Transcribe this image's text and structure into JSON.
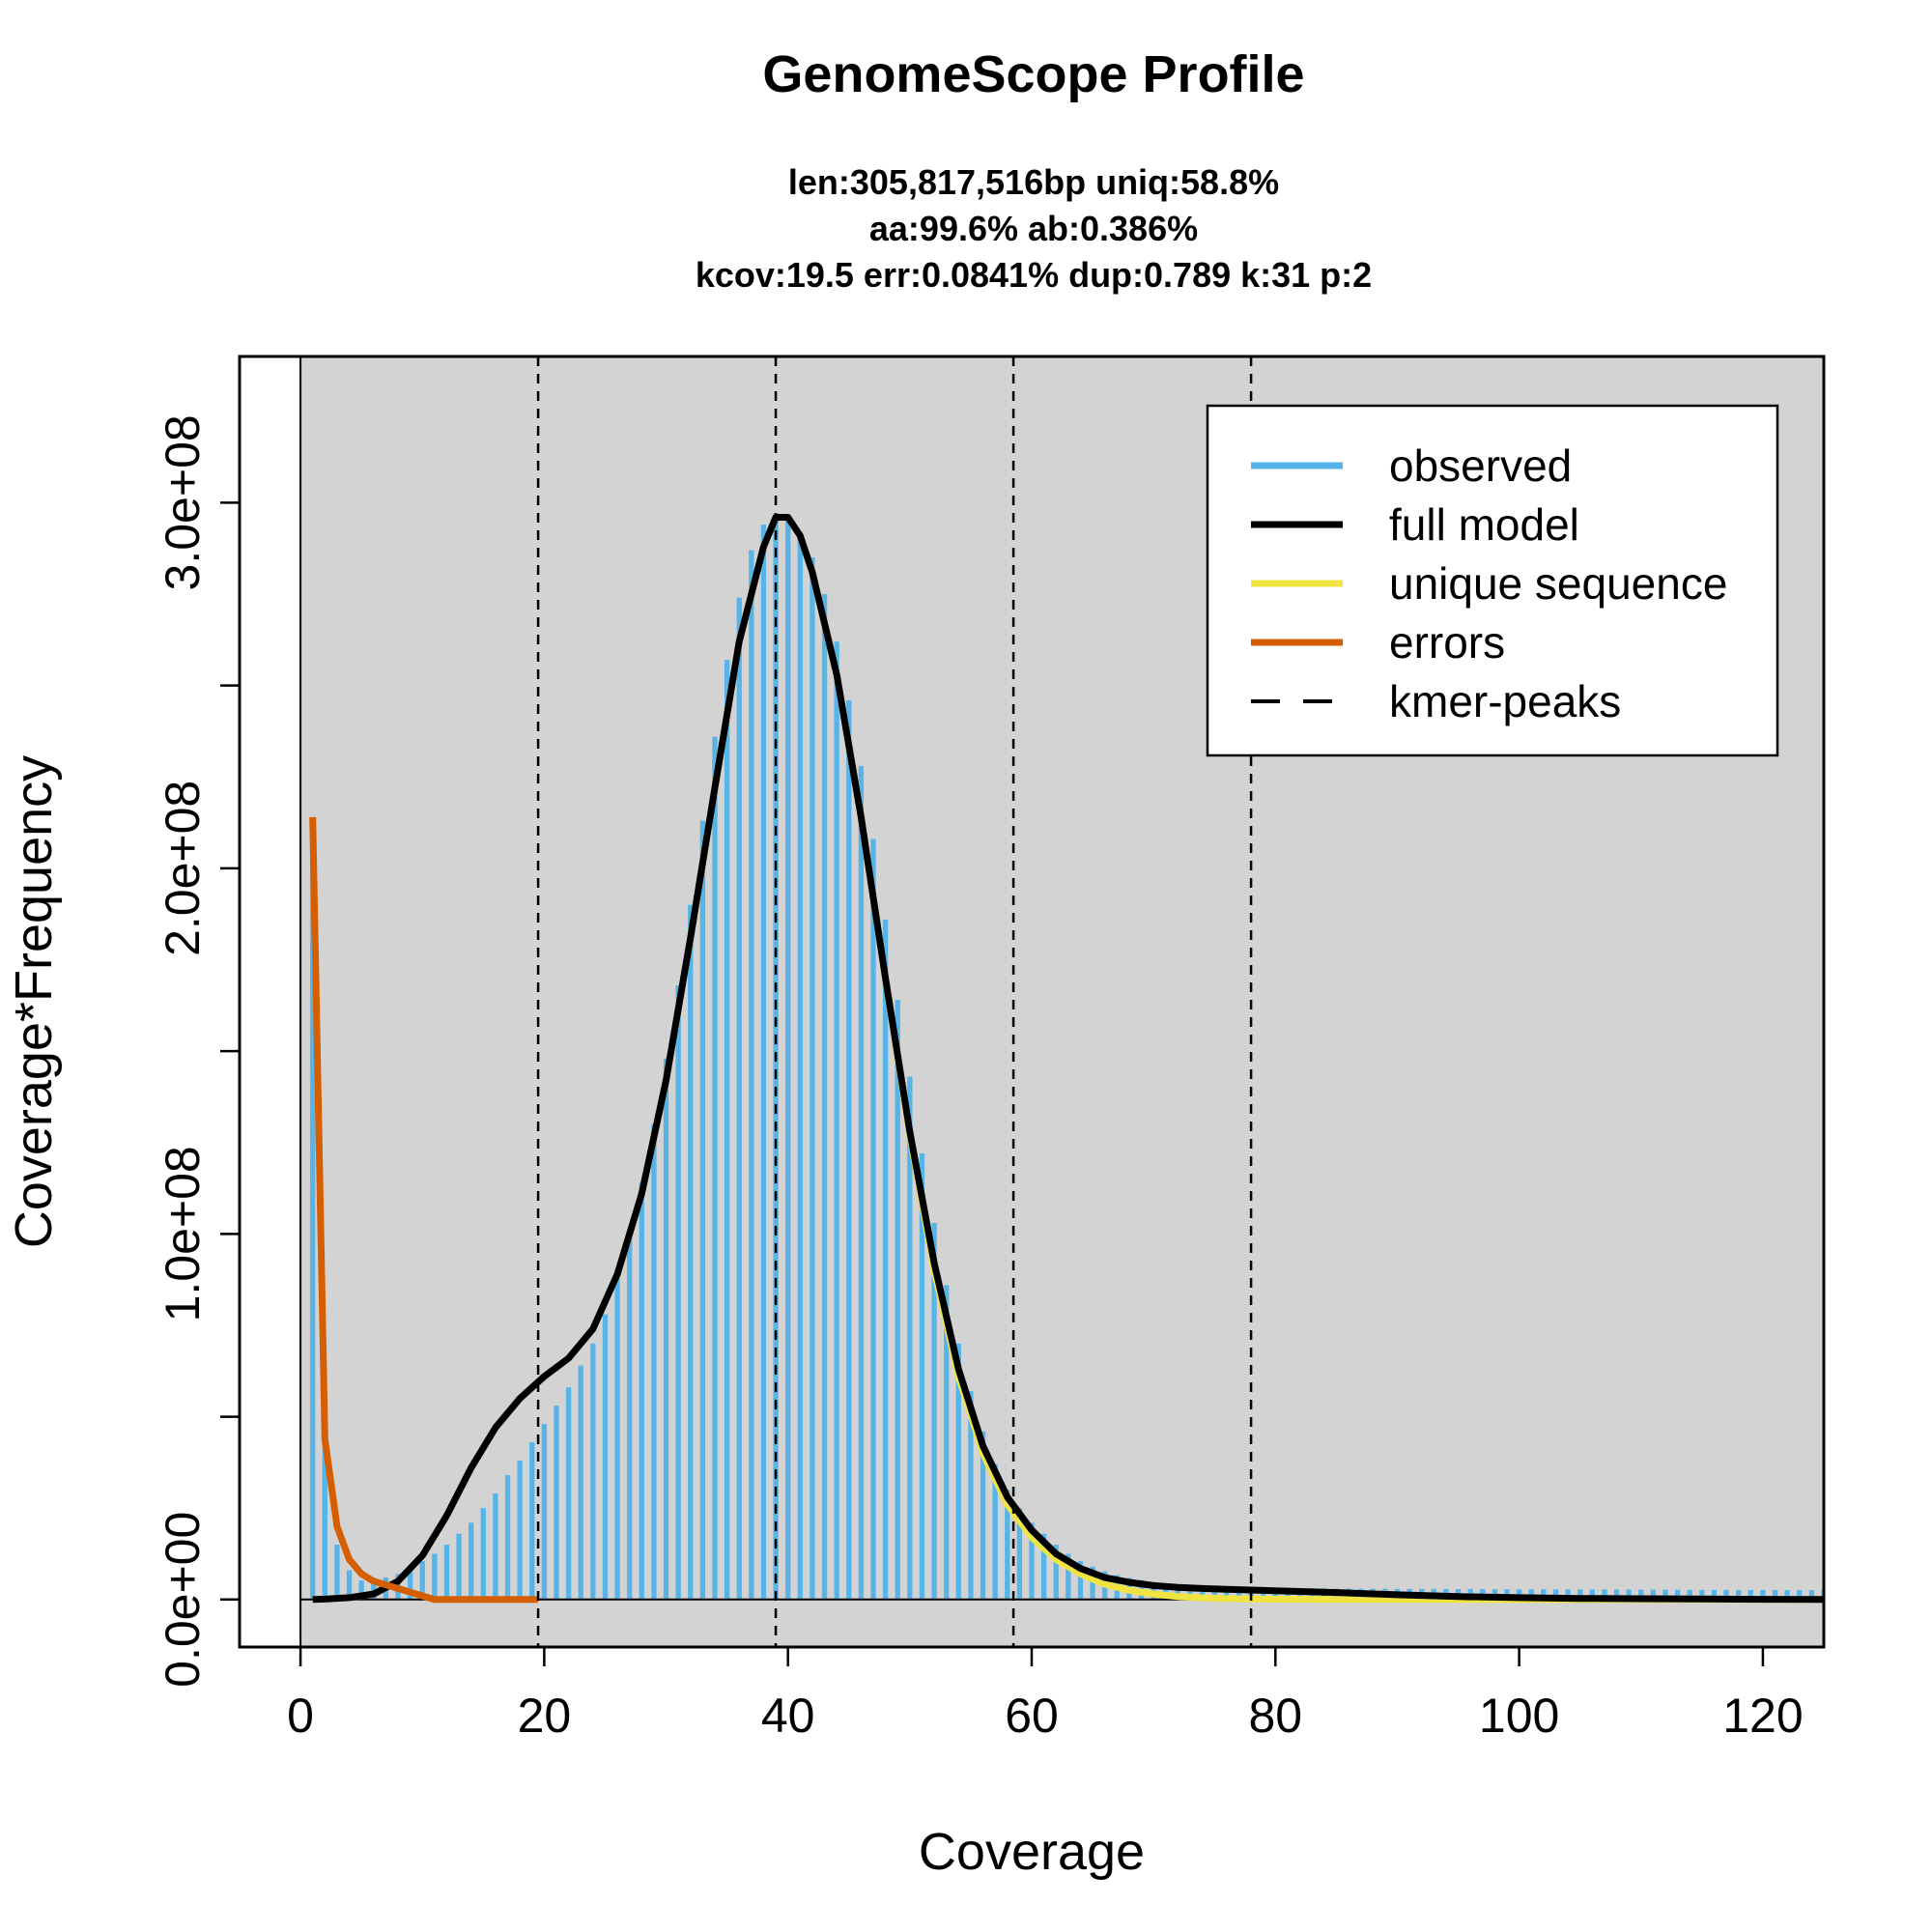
{
  "chart_data": {
    "type": "bar",
    "title": "GenomeScope Profile",
    "subtitle_lines": [
      "len:305,817,516bp uniq:58.8%",
      "aa:99.6% ab:0.386%",
      "kcov:19.5 err:0.0841%  dup:0.789  k:31 p:2"
    ],
    "xlabel": "Coverage",
    "ylabel": "Coverage*Frequency",
    "xlim": [
      -5,
      125
    ],
    "ylim": [
      -13000000,
      340000000
    ],
    "x_ticks": [
      0,
      20,
      40,
      60,
      80,
      100,
      120
    ],
    "x_tick_labels": [
      "0",
      "20",
      "40",
      "60",
      "80",
      "100",
      "120"
    ],
    "y_ticks": [
      0,
      50000000,
      100000000,
      150000000,
      200000000,
      250000000,
      300000000
    ],
    "y_tick_labels": [
      "0.0e+00",
      "",
      "1.0e+08",
      "",
      "2.0e+08",
      "",
      "3.0e+08"
    ],
    "plot_background": "#d3d3d3",
    "legend_position": "top-right",
    "kmer_peaks": [
      19.5,
      39,
      58.5,
      78
    ],
    "colors": {
      "observed": "#56b4e9",
      "full_model": "#000000",
      "unique_sequence": "#f0e442",
      "errors": "#d55e00",
      "kmer_peaks": "#000000"
    },
    "legend": [
      {
        "label": "observed",
        "style": "solid",
        "color": "#56b4e9"
      },
      {
        "label": "full model",
        "style": "solid",
        "color": "#000000"
      },
      {
        "label": "unique sequence",
        "style": "solid",
        "color": "#f0e442"
      },
      {
        "label": "errors",
        "style": "solid",
        "color": "#d55e00"
      },
      {
        "label": "kmer-peaks",
        "style": "dashed",
        "color": "#000000"
      }
    ],
    "observed": {
      "x": [
        1,
        2,
        3,
        4,
        5,
        6,
        7,
        8,
        9,
        10,
        11,
        12,
        13,
        14,
        15,
        16,
        17,
        18,
        19,
        20,
        21,
        22,
        23,
        24,
        25,
        26,
        27,
        28,
        29,
        30,
        31,
        32,
        33,
        34,
        35,
        36,
        37,
        38,
        39,
        40,
        41,
        42,
        43,
        44,
        45,
        46,
        47,
        48,
        49,
        50,
        51,
        52,
        53,
        54,
        55,
        56,
        57,
        58,
        59,
        60,
        61,
        62,
        63,
        64,
        65,
        66,
        67,
        68,
        69,
        70,
        71,
        72,
        73,
        74,
        75,
        76,
        77,
        78,
        79,
        80,
        81,
        82,
        83,
        84,
        85,
        86,
        87,
        88,
        89,
        90,
        91,
        92,
        93,
        94,
        95,
        96,
        97,
        98,
        99,
        100,
        101,
        102,
        103,
        104,
        105,
        106,
        107,
        108,
        109,
        110,
        111,
        112,
        113,
        114,
        115,
        116,
        117,
        118,
        119,
        120,
        121,
        122,
        123,
        124,
        125
      ],
      "y": [
        214000000,
        42000000,
        15000000,
        8000000,
        5200000,
        5000000,
        6000000,
        7000000,
        8500000,
        10500000,
        12500000,
        15000000,
        18000000,
        21000000,
        25000000,
        29000000,
        34000000,
        38000000,
        43000000,
        48000000,
        53000000,
        58000000,
        64000000,
        70000000,
        78000000,
        88000000,
        100000000,
        114000000,
        130000000,
        148000000,
        168000000,
        190000000,
        213000000,
        236000000,
        257000000,
        274000000,
        287000000,
        294000000,
        297000000,
        296000000,
        292000000,
        285000000,
        275000000,
        262000000,
        246000000,
        228000000,
        208000000,
        186000000,
        164000000,
        143000000,
        122000000,
        103000000,
        86000000,
        70000000,
        57000000,
        46000000,
        37000000,
        30000000,
        25000000,
        21000000,
        18000000,
        15000000,
        12500000,
        10500000,
        9000000,
        7700000,
        6700000,
        5900000,
        5300000,
        4800000,
        4400000,
        4100000,
        3900000,
        3700000,
        3550000,
        3450000,
        3350000,
        3300000,
        3250000,
        3200000,
        3150000,
        3100000,
        3100000,
        3050000,
        3000000,
        3000000,
        2950000,
        2950000,
        2950000,
        2900000,
        2900000,
        2900000,
        2880000,
        2880000,
        2860000,
        2850000,
        2850000,
        2830000,
        2820000,
        2800000,
        2800000,
        2780000,
        2770000,
        2760000,
        2750000,
        2740000,
        2730000,
        2720000,
        2710000,
        2700000,
        2690000,
        2680000,
        2670000,
        2660000,
        2650000,
        2640000,
        2630000,
        2620000,
        2610000,
        2600000,
        2590000,
        2580000,
        2570000,
        2560000,
        2550000
      ]
    },
    "full_model": {
      "x": [
        1,
        2,
        4,
        6,
        8,
        10,
        12,
        14,
        16,
        18,
        20,
        22,
        24,
        26,
        28,
        30,
        32,
        34,
        36,
        38,
        39,
        40,
        41,
        42,
        44,
        46,
        48,
        50,
        52,
        54,
        56,
        58,
        60,
        62,
        64,
        66,
        68,
        70,
        72,
        74,
        76,
        78,
        80,
        85,
        90,
        95,
        100,
        105,
        110,
        115,
        120,
        125
      ],
      "y": [
        0,
        100000,
        500000,
        1500000,
        5000000,
        12000000,
        23000000,
        36000000,
        47000000,
        55000000,
        61000000,
        66000000,
        74000000,
        89000000,
        111000000,
        142000000,
        181000000,
        222000000,
        262000000,
        288000000,
        296000000,
        296000000,
        291000000,
        281000000,
        253000000,
        214000000,
        170000000,
        128000000,
        92000000,
        63000000,
        42000000,
        28000000,
        19000000,
        12500000,
        8500000,
        6000000,
        4700000,
        3800000,
        3300000,
        3000000,
        2800000,
        2600000,
        2400000,
        1900000,
        1300000,
        800000,
        500000,
        300000,
        200000,
        120000,
        60000,
        30000
      ]
    },
    "unique_sequence": {
      "x": [
        1,
        2,
        4,
        6,
        8,
        10,
        12,
        14,
        16,
        18,
        20,
        22,
        24,
        26,
        28,
        30,
        32,
        34,
        36,
        38,
        39,
        40,
        41,
        42,
        44,
        46,
        48,
        50,
        52,
        54,
        56,
        58,
        60,
        62,
        64,
        66,
        68,
        70,
        72,
        74,
        76,
        78,
        80,
        85,
        90,
        95,
        100,
        105,
        110,
        115,
        120,
        125
      ],
      "y": [
        0,
        100000,
        500000,
        1500000,
        5000000,
        12000000,
        23000000,
        36000000,
        47000000,
        55000000,
        61000000,
        66000000,
        74000000,
        89000000,
        111000000,
        142000000,
        181000000,
        222000000,
        262000000,
        288000000,
        296000000,
        296000000,
        291000000,
        281000000,
        253000000,
        214000000,
        170000000,
        127000000,
        90000000,
        61000000,
        40000000,
        26000000,
        17000000,
        11000000,
        7000000,
        4200000,
        2500000,
        1500000,
        800000,
        450000,
        250000,
        130000,
        70000,
        20000,
        5000,
        2000,
        1000,
        500,
        200,
        100,
        50,
        20
      ]
    },
    "errors": {
      "x": [
        1,
        2,
        3,
        4,
        5,
        6,
        7,
        8,
        9,
        10,
        11,
        12,
        13,
        14,
        15,
        16,
        17,
        18,
        19,
        19.5
      ],
      "y": [
        214000000,
        44000000,
        20000000,
        11000000,
        7000000,
        5000000,
        4000000,
        3000000,
        2000000,
        1000000,
        0,
        0,
        0,
        0,
        0,
        0,
        0,
        0,
        0,
        0
      ]
    }
  }
}
